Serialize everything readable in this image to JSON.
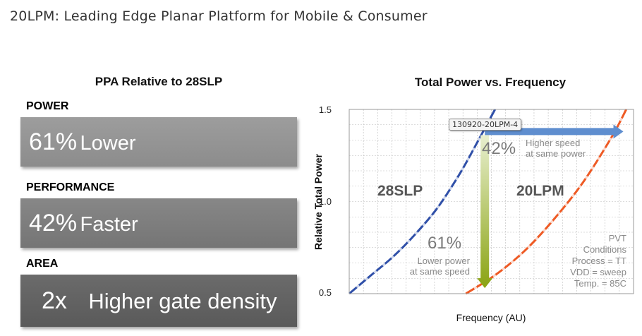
{
  "page_title": "20LPM: Leading Edge Planar Platform for Mobile & Consumer",
  "ppa": {
    "title": "PPA Relative to 28SLP",
    "items": [
      {
        "label": "POWER",
        "value": "61%",
        "text": "Lower"
      },
      {
        "label": "PERFORMANCE",
        "value": "42%",
        "text": "Faster"
      },
      {
        "label": "AREA",
        "value": "2x",
        "text": "Higher gate density"
      }
    ]
  },
  "tooltip_tag": "130920-20LPM-4",
  "colors": {
    "series_28slp": "#2f4fa8",
    "series_20lpm": "#ee5a24",
    "arrow_speed": "#5f8ecf",
    "arrow_power_top": "#e8efcf",
    "arrow_power_bottom": "#8aa312",
    "grid": "#bbbbbb"
  },
  "chart_data": {
    "type": "line",
    "title": "Total Power vs. Frequency",
    "xlabel": "Frequency (AU)",
    "ylabel": "Relative Total  Power",
    "ylim": [
      0.5,
      1.5
    ],
    "yticks": [
      "0.5",
      "1.0",
      "1.5"
    ],
    "grid": true,
    "series": [
      {
        "name": "28SLP",
        "x": [
          0.0,
          0.15,
          0.3,
          0.45,
          0.6,
          0.75,
          0.85,
          1.0
        ],
        "y": [
          0.5,
          0.6,
          0.7,
          0.82,
          0.96,
          1.14,
          1.28,
          1.5
        ]
      },
      {
        "name": "20LPM",
        "x": [
          0.8,
          1.0,
          1.2,
          1.4,
          1.6,
          1.8,
          1.9
        ],
        "y": [
          0.5,
          0.6,
          0.73,
          0.9,
          1.1,
          1.35,
          1.5
        ]
      }
    ],
    "annotations": [
      {
        "pct": "42%",
        "line1": "Higher speed",
        "line2": "at same power"
      },
      {
        "pct": "61%",
        "line1": "Lower power",
        "line2": "at same speed"
      },
      {
        "lines": [
          "PVT",
          "Conditions",
          "Process = TT",
          "VDD = sweep",
          "Temp. = 85C"
        ]
      }
    ]
  }
}
